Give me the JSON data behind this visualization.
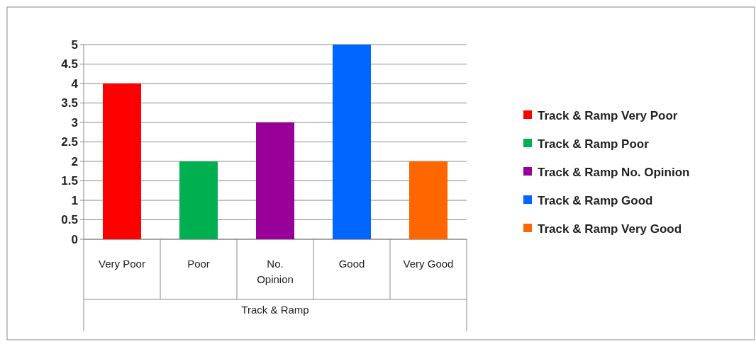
{
  "chart_data": {
    "type": "bar",
    "xlabel": "Track & Ramp",
    "categories": [
      "Very Poor",
      "Poor",
      "No. Opinion",
      "Good",
      "Very Good"
    ],
    "series": [
      {
        "name": "Track & Ramp Very Poor",
        "color": "#ff0000",
        "values": [
          4,
          null,
          null,
          null,
          null
        ]
      },
      {
        "name": "Track & Ramp Poor",
        "color": "#00b050",
        "values": [
          null,
          2,
          null,
          null,
          null
        ]
      },
      {
        "name": "Track & Ramp No. Opinion",
        "color": "#990099",
        "values": [
          null,
          null,
          3,
          null,
          null
        ]
      },
      {
        "name": "Track & Ramp Good",
        "color": "#0066ff",
        "values": [
          null,
          null,
          null,
          5,
          null
        ]
      },
      {
        "name": "Track & Ramp Very Good",
        "color": "#ff6600",
        "values": [
          null,
          null,
          null,
          null,
          2
        ]
      }
    ],
    "ylim": [
      0,
      5
    ],
    "yticks": [
      0,
      0.5,
      1,
      1.5,
      2,
      2.5,
      3,
      3.5,
      4,
      4.5,
      5
    ],
    "grid": "y",
    "legend": "right"
  }
}
